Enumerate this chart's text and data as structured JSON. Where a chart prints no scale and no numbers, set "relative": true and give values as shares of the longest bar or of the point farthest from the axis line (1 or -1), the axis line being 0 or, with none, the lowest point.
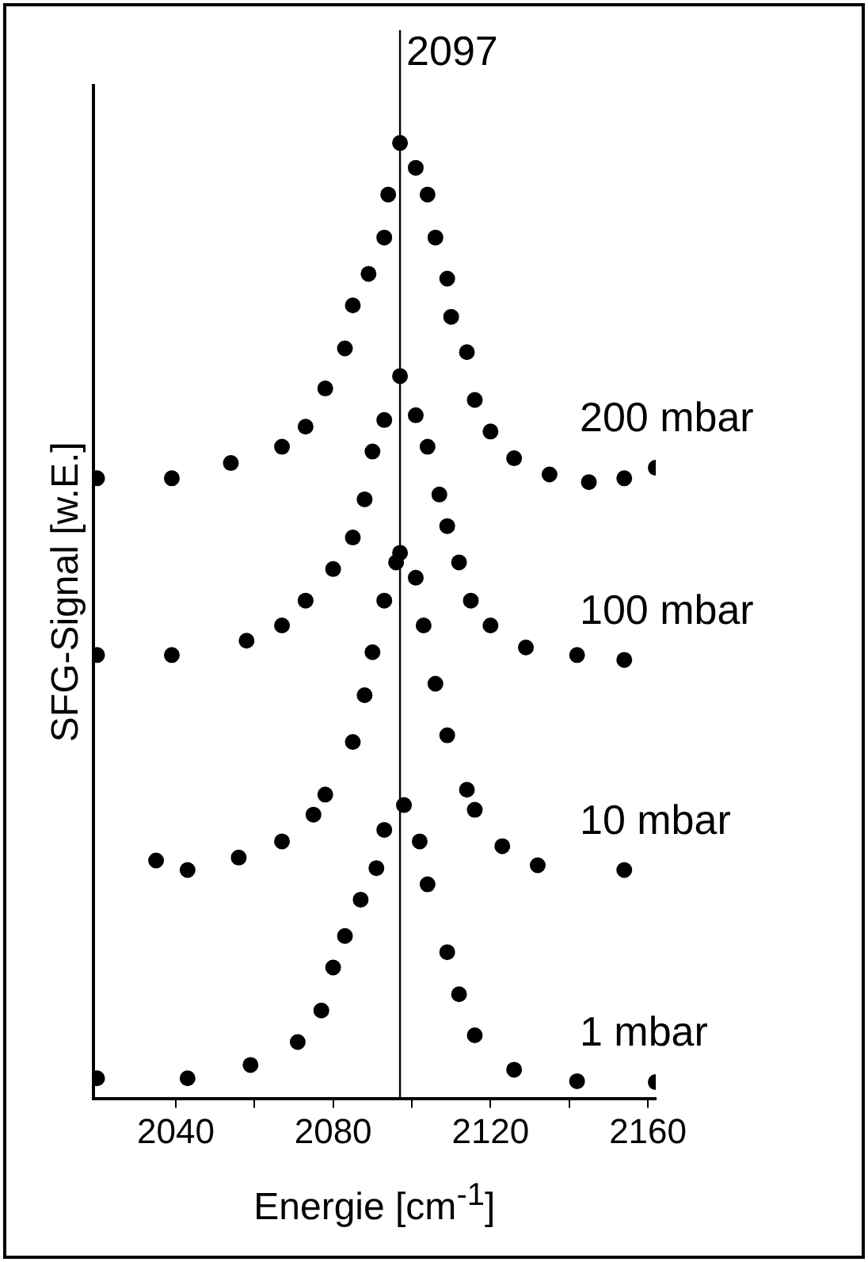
{
  "chart_data": {
    "type": "scatter",
    "relative": true,
    "xlabel": "Energie [cm$^{-1}$]",
    "ylabel": "SFG-Signal [w.E.]",
    "xlim": [
      2019,
      2162
    ],
    "xticks": [
      2040,
      {
        "value": 2060,
        "label": null
      },
      2080,
      {
        "value": 2100,
        "label": null
      },
      2120,
      {
        "value": 2140,
        "label": null
      },
      2160
    ],
    "marker": "circle",
    "legend": false,
    "grid": false,
    "ref_lines": [
      {
        "axis": "x",
        "value": 2097,
        "label": "2097",
        "color": "#000000"
      }
    ],
    "series": [
      {
        "name": "200 mbar",
        "color": "#000000",
        "x": [
          2020,
          2039,
          2054,
          2067,
          2073,
          2078,
          2083,
          2085,
          2089,
          2093,
          2094,
          2097,
          2101,
          2104,
          2106,
          2109,
          2110,
          2114,
          2116,
          2120,
          2126,
          2135,
          2145,
          2154,
          2162
        ],
        "values": [
          0.649,
          0.649,
          0.665,
          0.682,
          0.703,
          0.743,
          0.785,
          0.83,
          0.863,
          0.901,
          0.946,
          1.0,
          0.974,
          0.946,
          0.901,
          0.858,
          0.818,
          0.781,
          0.731,
          0.698,
          0.67,
          0.653,
          0.645,
          0.649,
          0.66
        ]
      },
      {
        "name": "100 mbar",
        "color": "#000000",
        "x": [
          2020,
          2039,
          2058,
          2067,
          2073,
          2080,
          2085,
          2088,
          2090,
          2093,
          2097,
          2101,
          2104,
          2107,
          2109,
          2112,
          2115,
          2120,
          2129,
          2142,
          2154
        ],
        "values": [
          0.464,
          0.464,
          0.479,
          0.495,
          0.521,
          0.554,
          0.587,
          0.627,
          0.677,
          0.71,
          0.756,
          0.715,
          0.682,
          0.632,
          0.599,
          0.561,
          0.521,
          0.495,
          0.472,
          0.464,
          0.459
        ]
      },
      {
        "name": "10 mbar",
        "color": "#000000",
        "x": [
          2035,
          2043,
          2056,
          2067,
          2075,
          2078,
          2085,
          2088,
          2090,
          2093,
          2096,
          2097,
          2101,
          2103,
          2106,
          2109,
          2114,
          2116,
          2123,
          2132,
          2154
        ],
        "values": [
          0.249,
          0.239,
          0.252,
          0.269,
          0.297,
          0.318,
          0.373,
          0.422,
          0.467,
          0.521,
          0.561,
          0.571,
          0.545,
          0.495,
          0.434,
          0.38,
          0.323,
          0.302,
          0.264,
          0.244,
          0.239
        ]
      },
      {
        "name": "1 mbar",
        "color": "#000000",
        "x": [
          2020,
          2043,
          2059,
          2071,
          2077,
          2080,
          2083,
          2087,
          2091,
          2093,
          2098,
          2102,
          2104,
          2109,
          2112,
          2116,
          2126,
          2142,
          2162
        ],
        "values": [
          0.021,
          0.021,
          0.035,
          0.059,
          0.092,
          0.137,
          0.17,
          0.208,
          0.241,
          0.281,
          0.307,
          0.269,
          0.224,
          0.153,
          0.109,
          0.066,
          0.03,
          0.018,
          0.017
        ]
      }
    ]
  }
}
